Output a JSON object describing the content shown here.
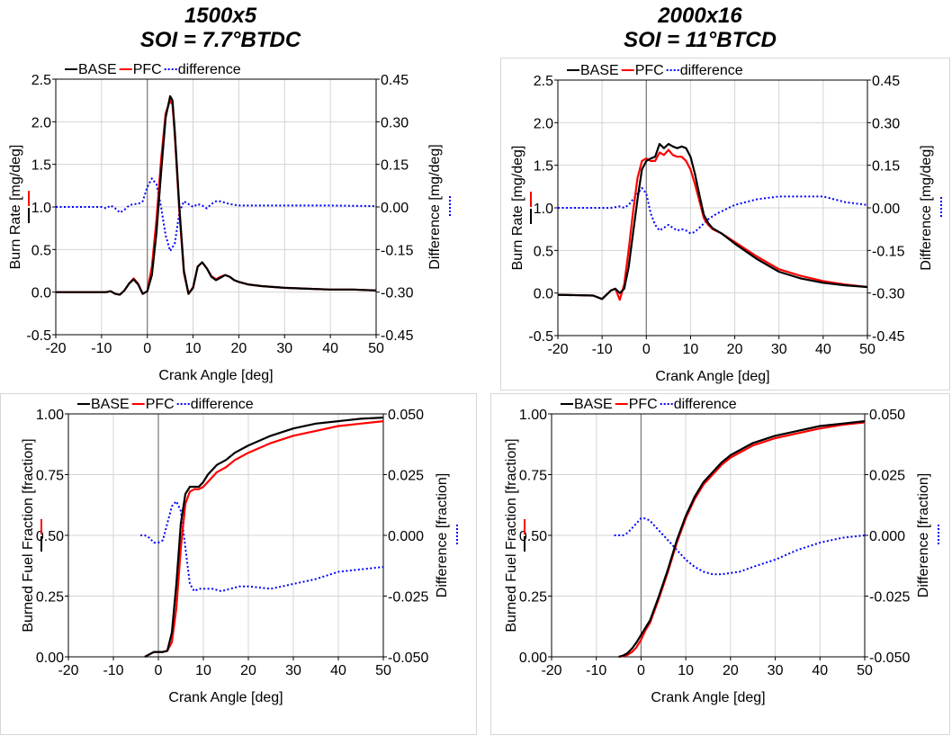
{
  "columns": [
    {
      "title_line1": "1500x5",
      "title_line2": "SOI = 7.7°BTDC"
    },
    {
      "title_line1": "2000x16",
      "title_line2": "SOI = 11°BTCD"
    }
  ],
  "colors": {
    "base": "#000000",
    "pfc": "#ff0000",
    "difference": "#0000ff"
  },
  "chart_data": [
    {
      "type": "line",
      "xlabel": "Crank Angle [deg]",
      "ylabel": "Burn Rate [mg/deg]",
      "y2label": "Difference [mg/deg]",
      "xlim": [
        -20,
        50
      ],
      "ylim": [
        -0.5,
        2.5
      ],
      "y2lim": [
        -0.45,
        0.45
      ],
      "xticks": [
        "-20",
        "-10",
        "0",
        "10",
        "20",
        "30",
        "40",
        "50"
      ],
      "yticks": [
        "-0.5",
        "0.0",
        "0.5",
        "1.0",
        "1.5",
        "2.0",
        "2.5"
      ],
      "y2ticks": [
        "-0.45",
        "-0.30",
        "-0.15",
        "0.00",
        "0.15",
        "0.30",
        "0.45"
      ],
      "legend": [
        "BASE",
        "PFC",
        "difference"
      ],
      "legend_position": "top-left",
      "series": [
        {
          "name": "BASE",
          "axis": "left",
          "color": "#000000",
          "x": [
            -20,
            -12,
            -9,
            -8,
            -7,
            -6,
            -5,
            -4,
            -3,
            -2,
            -1,
            0,
            1,
            2,
            3,
            4,
            5,
            5.5,
            6,
            7,
            8,
            9,
            10,
            11,
            12,
            13,
            14,
            15,
            16,
            17,
            18,
            19,
            20,
            22,
            25,
            30,
            35,
            40,
            45,
            50
          ],
          "y": [
            0,
            0,
            0,
            0.01,
            -0.02,
            -0.03,
            0.02,
            0.1,
            0.15,
            0.09,
            -0.02,
            0.01,
            0.2,
            0.7,
            1.4,
            2.05,
            2.3,
            2.25,
            1.9,
            1.0,
            0.25,
            -0.02,
            0.05,
            0.3,
            0.35,
            0.28,
            0.18,
            0.14,
            0.17,
            0.2,
            0.18,
            0.14,
            0.12,
            0.09,
            0.07,
            0.05,
            0.04,
            0.03,
            0.03,
            0.02
          ]
        },
        {
          "name": "PFC",
          "axis": "left",
          "color": "#ff0000",
          "x": [
            -20,
            -12,
            -9,
            -8,
            -7,
            -6,
            -5,
            -4,
            -3,
            -2,
            -1,
            0,
            1,
            2,
            3,
            4,
            5,
            5.5,
            6,
            7,
            8,
            9,
            10,
            11,
            12,
            13,
            14,
            15,
            16,
            17,
            18,
            19,
            20,
            22,
            25,
            30,
            35,
            40,
            45,
            50
          ],
          "y": [
            0,
            0,
            0,
            0.01,
            -0.02,
            -0.03,
            0.02,
            0.1,
            0.16,
            0.1,
            -0.02,
            0.01,
            0.3,
            0.85,
            1.55,
            2.1,
            2.25,
            2.2,
            1.85,
            0.95,
            0.22,
            -0.02,
            0.06,
            0.3,
            0.35,
            0.28,
            0.19,
            0.15,
            0.18,
            0.2,
            0.18,
            0.14,
            0.12,
            0.09,
            0.07,
            0.05,
            0.04,
            0.03,
            0.03,
            0.02
          ]
        },
        {
          "name": "difference",
          "axis": "right",
          "color": "#0000ff",
          "x": [
            -20,
            -12,
            -10,
            -9,
            -8,
            -7,
            -6,
            -5,
            -4,
            -3,
            -2,
            -1,
            0,
            1,
            2,
            3,
            4,
            5,
            6,
            7,
            8,
            9,
            10,
            11,
            12,
            13,
            14,
            15,
            16,
            17,
            18,
            20,
            25,
            30,
            40,
            50
          ],
          "y": [
            0,
            0,
            0,
            -0.005,
            0.005,
            -0.005,
            -0.02,
            -0.01,
            0.005,
            0.01,
            0.01,
            0.02,
            0.07,
            0.1,
            0.08,
            0.0,
            -0.1,
            -0.155,
            -0.13,
            -0.02,
            0.02,
            0.01,
            0.0,
            0.01,
            0.005,
            -0.005,
            0.01,
            0.02,
            0.02,
            0.015,
            0.01,
            0.005,
            0.005,
            0.005,
            0.005,
            0.003
          ]
        }
      ]
    },
    {
      "type": "line",
      "xlabel": "Crank Angle [deg]",
      "ylabel": "Burn Rate [mg/deg]",
      "y2label": "Difference [mg/deg]",
      "xlim": [
        -20,
        50
      ],
      "ylim": [
        -0.5,
        2.5
      ],
      "y2lim": [
        -0.45,
        0.45
      ],
      "xticks": [
        "-20",
        "-10",
        "0",
        "10",
        "20",
        "30",
        "40",
        "50"
      ],
      "yticks": [
        "-0.5",
        "0.0",
        "0.5",
        "1.0",
        "1.5",
        "2.0",
        "2.5"
      ],
      "y2ticks": [
        "-0.45",
        "-0.30",
        "-0.15",
        "0.00",
        "0.15",
        "0.30",
        "0.45"
      ],
      "legend": [
        "BASE",
        "PFC",
        "difference"
      ],
      "legend_position": "top-left",
      "series": [
        {
          "name": "BASE",
          "axis": "left",
          "color": "#000000",
          "x": [
            -20,
            -12,
            -10,
            -8,
            -7,
            -6,
            -5,
            -4,
            -3,
            -2,
            -1,
            0,
            1,
            2,
            3,
            4,
            5,
            6,
            7,
            8,
            9,
            10,
            11,
            12,
            13,
            14,
            15,
            17,
            20,
            25,
            30,
            35,
            40,
            45,
            50
          ],
          "y": [
            -0.02,
            -0.03,
            -0.07,
            0.03,
            0.05,
            0.0,
            0.05,
            0.3,
            0.7,
            1.1,
            1.45,
            1.55,
            1.58,
            1.6,
            1.75,
            1.7,
            1.75,
            1.72,
            1.7,
            1.72,
            1.7,
            1.6,
            1.4,
            1.15,
            0.92,
            0.82,
            0.76,
            0.7,
            0.58,
            0.4,
            0.25,
            0.17,
            0.12,
            0.09,
            0.07
          ]
        },
        {
          "name": "PFC",
          "axis": "left",
          "color": "#ff0000",
          "x": [
            -20,
            -12,
            -10,
            -8,
            -7,
            -6,
            -5,
            -4,
            -3,
            -2,
            -1,
            0,
            1,
            2,
            3,
            4,
            5,
            6,
            7,
            8,
            9,
            10,
            11,
            12,
            13,
            14,
            15,
            17,
            20,
            25,
            30,
            35,
            40,
            45,
            50
          ],
          "y": [
            -0.02,
            -0.03,
            -0.07,
            0.03,
            0.05,
            -0.08,
            0.1,
            0.5,
            0.95,
            1.35,
            1.55,
            1.58,
            1.55,
            1.55,
            1.65,
            1.62,
            1.68,
            1.62,
            1.6,
            1.6,
            1.55,
            1.45,
            1.28,
            1.08,
            0.88,
            0.8,
            0.75,
            0.7,
            0.6,
            0.43,
            0.28,
            0.2,
            0.14,
            0.1,
            0.07
          ]
        },
        {
          "name": "difference",
          "axis": "right",
          "color": "#0000ff",
          "x": [
            -20,
            -10,
            -8,
            -6,
            -5,
            -4,
            -3,
            -2,
            -1,
            0,
            1,
            2,
            3,
            4,
            5,
            6,
            7,
            8,
            9,
            10,
            11,
            12,
            14,
            16,
            20,
            25,
            30,
            35,
            40,
            45,
            50
          ],
          "y": [
            0,
            0,
            0,
            0.005,
            0.0,
            0.01,
            0.03,
            0.05,
            0.07,
            0.05,
            -0.02,
            -0.06,
            -0.08,
            -0.07,
            -0.06,
            -0.07,
            -0.08,
            -0.075,
            -0.08,
            -0.09,
            -0.085,
            -0.07,
            -0.04,
            -0.02,
            0.01,
            0.03,
            0.04,
            0.04,
            0.04,
            0.02,
            0.01
          ]
        }
      ]
    },
    {
      "type": "line",
      "xlabel": "Crank Angle [deg]",
      "ylabel": "Burned Fuel Fraction [fraction]",
      "y2label": "Difference [fraction]",
      "xlim": [
        -20,
        50
      ],
      "ylim": [
        0,
        1
      ],
      "y2lim": [
        -0.05,
        0.05
      ],
      "xticks": [
        "-20",
        "-10",
        "0",
        "10",
        "20",
        "30",
        "40",
        "50"
      ],
      "yticks": [
        "0.00",
        "0.25",
        "0.50",
        "0.75",
        "1.00"
      ],
      "y2ticks": [
        "-0.050",
        "-0.025",
        "0.000",
        "0.025",
        "0.050"
      ],
      "legend": [
        "BASE",
        "PFC",
        "difference"
      ],
      "legend_position": "top-left",
      "series": [
        {
          "name": "BASE",
          "axis": "left",
          "color": "#000000",
          "x": [
            -3,
            -2,
            -1,
            0,
            1,
            2,
            3,
            4,
            5,
            6,
            7,
            8,
            9,
            10,
            11,
            12,
            13,
            15,
            17,
            20,
            25,
            30,
            35,
            40,
            45,
            50
          ],
          "y": [
            0,
            0.01,
            0.02,
            0.02,
            0.02,
            0.025,
            0.1,
            0.3,
            0.55,
            0.67,
            0.7,
            0.7,
            0.7,
            0.72,
            0.75,
            0.77,
            0.79,
            0.81,
            0.84,
            0.87,
            0.91,
            0.94,
            0.96,
            0.97,
            0.98,
            0.985
          ]
        },
        {
          "name": "PFC",
          "axis": "left",
          "color": "#ff0000",
          "x": [
            -3,
            -2,
            -1,
            0,
            1,
            2,
            3,
            4,
            5,
            6,
            7,
            8,
            9,
            10,
            11,
            12,
            13,
            15,
            17,
            20,
            25,
            30,
            35,
            40,
            45,
            50
          ],
          "y": [
            0,
            0.01,
            0.02,
            0.02,
            0.02,
            0.025,
            0.06,
            0.2,
            0.45,
            0.63,
            0.68,
            0.69,
            0.69,
            0.7,
            0.72,
            0.74,
            0.76,
            0.78,
            0.81,
            0.84,
            0.88,
            0.91,
            0.93,
            0.95,
            0.96,
            0.97
          ]
        },
        {
          "name": "difference",
          "axis": "right",
          "color": "#0000ff",
          "x": [
            -4,
            -3,
            -2,
            -1,
            0,
            1,
            2,
            3,
            4,
            5,
            6,
            7,
            8,
            9,
            10,
            12,
            14,
            16,
            18,
            20,
            25,
            30,
            35,
            40,
            45,
            50
          ],
          "y": [
            0,
            0,
            -0.001,
            -0.003,
            -0.003,
            -0.002,
            0.005,
            0.012,
            0.014,
            0.01,
            -0.005,
            -0.02,
            -0.023,
            -0.022,
            -0.022,
            -0.022,
            -0.023,
            -0.022,
            -0.021,
            -0.021,
            -0.022,
            -0.02,
            -0.018,
            -0.015,
            -0.014,
            -0.013
          ]
        }
      ]
    },
    {
      "type": "line",
      "xlabel": "Crank Angle [deg]",
      "ylabel": "Burned Fuel Fraction [fraction]",
      "y2label": "Difference [fraction]",
      "xlim": [
        -20,
        50
      ],
      "ylim": [
        0,
        1
      ],
      "y2lim": [
        -0.05,
        0.05
      ],
      "xticks": [
        "-20",
        "-10",
        "0",
        "10",
        "20",
        "30",
        "40",
        "50"
      ],
      "yticks": [
        "0.00",
        "0.25",
        "0.50",
        "0.75",
        "1.00"
      ],
      "y2ticks": [
        "-0.050",
        "-0.025",
        "0.000",
        "0.025",
        "0.050"
      ],
      "legend": [
        "BASE",
        "PFC",
        "difference"
      ],
      "legend_position": "top-left",
      "series": [
        {
          "name": "BASE",
          "axis": "left",
          "color": "#000000",
          "x": [
            -5,
            -4,
            -3,
            -2,
            -1,
            0,
            1,
            2,
            4,
            6,
            8,
            10,
            12,
            14,
            16,
            18,
            20,
            25,
            30,
            35,
            40,
            45,
            50
          ],
          "y": [
            0,
            0.005,
            0.015,
            0.035,
            0.06,
            0.09,
            0.12,
            0.15,
            0.25,
            0.36,
            0.48,
            0.58,
            0.66,
            0.72,
            0.76,
            0.8,
            0.83,
            0.88,
            0.91,
            0.93,
            0.95,
            0.96,
            0.97
          ]
        },
        {
          "name": "PFC",
          "axis": "left",
          "color": "#ff0000",
          "x": [
            -5,
            -4,
            -3,
            -2,
            -1,
            0,
            1,
            2,
            4,
            6,
            8,
            10,
            12,
            14,
            16,
            18,
            20,
            25,
            30,
            35,
            40,
            45,
            50
          ],
          "y": [
            0,
            0.003,
            0.008,
            0.02,
            0.04,
            0.07,
            0.11,
            0.14,
            0.24,
            0.35,
            0.47,
            0.57,
            0.65,
            0.71,
            0.75,
            0.79,
            0.82,
            0.87,
            0.9,
            0.92,
            0.94,
            0.955,
            0.965
          ]
        },
        {
          "name": "difference",
          "axis": "right",
          "color": "#0000ff",
          "x": [
            -6,
            -4,
            -3,
            -2,
            -1,
            0,
            1,
            2,
            3,
            4,
            6,
            8,
            10,
            12,
            14,
            16,
            18,
            20,
            22,
            25,
            30,
            35,
            40,
            45,
            50
          ],
          "y": [
            0,
            0,
            0.001,
            0.003,
            0.005,
            0.007,
            0.007,
            0.006,
            0.004,
            0.002,
            -0.002,
            -0.006,
            -0.01,
            -0.013,
            -0.015,
            -0.016,
            -0.016,
            -0.0155,
            -0.015,
            -0.013,
            -0.01,
            -0.006,
            -0.003,
            -0.001,
            0
          ]
        }
      ]
    }
  ]
}
